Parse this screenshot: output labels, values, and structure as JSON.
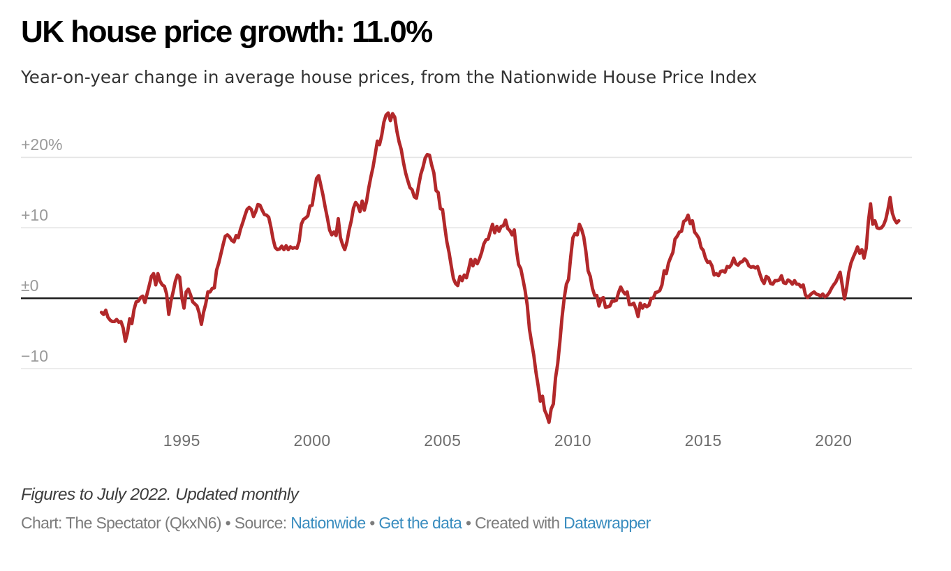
{
  "title": "UK house price growth: 11.0%",
  "subtitle": "Year-on-year change in average house prices, from the Nationwide House Price Index",
  "notes": "Figures to July 2022. Updated monthly",
  "byline": {
    "chart_credit": "Chart: The Spectator (QkxN6) • Source: ",
    "source_link": "Nationwide",
    "sep1": " • ",
    "data_link": "Get the data",
    "sep2": " • Created with ",
    "tool_link": "Datawrapper"
  },
  "chart_data": {
    "type": "line",
    "title": "UK house price growth: 11.0%",
    "subtitle": "Year-on-year change in average house prices, from the Nationwide House Price Index",
    "series_name": "Year-on-year change in average house prices (%)",
    "frequency": "monthly",
    "start_year": 1991,
    "start_month": 12,
    "end_year": 2022,
    "end_month": 7,
    "values": [
      -2.0,
      -2.3,
      -1.7,
      -2.7,
      -3.1,
      -3.3,
      -3.3,
      -3.0,
      -3.4,
      -3.3,
      -4.2,
      -6.1,
      -4.9,
      -2.9,
      -3.6,
      -1.6,
      -0.5,
      -0.4,
      0.1,
      0.3,
      -0.6,
      0.6,
      1.8,
      3.1,
      3.5,
      1.9,
      3.5,
      2.4,
      1.9,
      1.7,
      0.6,
      -2.3,
      -0.4,
      0.9,
      2.4,
      3.3,
      3.0,
      0.1,
      -1.4,
      0.9,
      1.3,
      0.5,
      -0.5,
      -0.8,
      -1.1,
      -2.1,
      -3.7,
      -2.0,
      -0.8,
      0.9,
      0.9,
      1.4,
      1.5,
      4.0,
      5.0,
      6.3,
      7.6,
      8.8,
      9.0,
      8.7,
      8.2,
      8.0,
      8.9,
      8.6,
      9.8,
      10.7,
      11.7,
      12.6,
      12.9,
      12.6,
      11.6,
      12.3,
      13.3,
      13.2,
      12.5,
      11.9,
      11.8,
      11.5,
      10.1,
      8.4,
      7.2,
      6.9,
      7.0,
      7.4,
      6.9,
      7.45,
      6.9,
      7.3,
      7.1,
      7.2,
      7.1,
      8.1,
      10.5,
      11.2,
      11.4,
      11.7,
      13.1,
      13.2,
      15.2,
      17.0,
      17.4,
      16.0,
      14.6,
      12.9,
      11.4,
      9.7,
      9.0,
      9.4,
      8.9,
      11.3,
      8.6,
      7.6,
      6.9,
      8.0,
      9.7,
      11.0,
      12.8,
      13.6,
      13.2,
      12.3,
      13.8,
      12.5,
      13.7,
      15.6,
      17.2,
      18.6,
      20.4,
      22.3,
      21.8,
      23.1,
      25.0,
      26.0,
      26.3,
      25.2,
      26.2,
      25.7,
      23.7,
      22.2,
      21.1,
      19.3,
      17.8,
      16.7,
      15.7,
      15.4,
      14.4,
      14.2,
      16.0,
      17.6,
      18.6,
      19.9,
      20.4,
      20.3,
      18.9,
      17.8,
      15.3,
      15.0,
      12.7,
      12.6,
      10.2,
      8.0,
      6.5,
      4.6,
      2.8,
      2.1,
      1.8,
      3.1,
      2.5,
      3.3,
      2.9,
      4.1,
      5.5,
      4.6,
      5.5,
      4.9,
      5.6,
      6.5,
      7.7,
      8.3,
      8.4,
      9.5,
      10.5,
      9.3,
      10.2,
      9.5,
      10.2,
      10.3,
      11.1,
      9.9,
      9.6,
      9.0,
      9.7,
      6.9,
      4.8,
      4.2,
      2.7,
      1.1,
      -1.0,
      -4.4,
      -6.3,
      -8.1,
      -10.5,
      -12.4,
      -14.6,
      -13.9,
      -15.9,
      -16.6,
      -17.6,
      -15.7,
      -15.0,
      -11.3,
      -9.3,
      -6.2,
      -2.7,
      0.0,
      2.0,
      2.7,
      5.9,
      8.6,
      9.2,
      9.0,
      10.5,
      9.8,
      8.7,
      6.6,
      3.9,
      3.1,
      1.4,
      0.4,
      0.4,
      -1.1,
      -0.1,
      0.1,
      -1.3,
      -1.2,
      -1.1,
      -0.4,
      -0.4,
      -0.3,
      0.8,
      1.6,
      1.0,
      0.6,
      0.9,
      -0.9,
      -0.9,
      -0.7,
      -1.5,
      -2.6,
      -0.7,
      -1.4,
      -0.9,
      -1.2,
      -1.0,
      0.0,
      0.0,
      0.8,
      0.9,
      1.1,
      1.9,
      3.9,
      3.5,
      5.0,
      5.8,
      6.5,
      8.4,
      8.8,
      9.4,
      9.5,
      10.9,
      11.1,
      11.8,
      10.6,
      11.0,
      9.4,
      9.0,
      8.5,
      7.2,
      6.8,
      5.7,
      5.1,
      5.2,
      4.6,
      3.3,
      3.5,
      3.2,
      3.8,
      3.9,
      3.7,
      4.5,
      4.4,
      4.8,
      5.7,
      4.9,
      4.7,
      5.1,
      5.2,
      5.6,
      5.3,
      4.6,
      4.4,
      4.5,
      4.3,
      4.5,
      3.5,
      2.6,
      2.1,
      3.1,
      2.9,
      2.1,
      2.0,
      2.5,
      2.5,
      2.6,
      3.2,
      2.2,
      2.1,
      2.6,
      2.4,
      2.0,
      2.5,
      2.0,
      2.0,
      1.6,
      1.9,
      0.5,
      0.1,
      0.4,
      0.7,
      0.9,
      0.6,
      0.5,
      0.3,
      0.6,
      0.2,
      0.4,
      0.8,
      1.4,
      1.9,
      2.3,
      3.0,
      3.7,
      1.8,
      -0.1,
      1.5,
      3.7,
      5.0,
      5.8,
      6.5,
      7.3,
      6.4,
      6.9,
      5.7,
      7.1,
      10.9,
      13.4,
      10.5,
      11.0,
      10.0,
      9.9,
      10.0,
      10.4,
      11.2,
      12.6,
      14.3,
      12.1,
      11.2,
      10.7,
      11.0
    ],
    "x_ticks": [
      {
        "value": 1995,
        "label": "1995"
      },
      {
        "value": 2000,
        "label": "2000"
      },
      {
        "value": 2005,
        "label": "2005"
      },
      {
        "value": 2010,
        "label": "2010"
      },
      {
        "value": 2015,
        "label": "2015"
      },
      {
        "value": 2020,
        "label": "2020"
      }
    ],
    "y_ticks": [
      {
        "value": 20,
        "label": "+20%"
      },
      {
        "value": 10,
        "label": "+10"
      },
      {
        "value": 0,
        "label": "±0"
      },
      {
        "value": -10,
        "label": "−10"
      }
    ],
    "x_range": [
      1991.9167,
      2022.5
    ],
    "y_range": [
      -19,
      27
    ],
    "grid": "horizontal",
    "legend": "none",
    "line_color": "#b2282a",
    "zero_line_color": "#161616",
    "grid_color": "#e4e4e4"
  }
}
